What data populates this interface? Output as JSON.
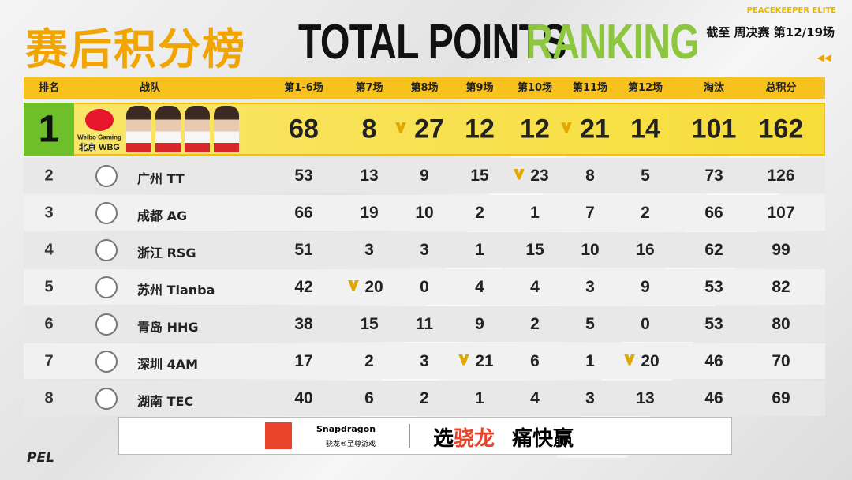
{
  "header": {
    "brand": "PEACEKEEPER ELITE",
    "title_cn": "赛后积分榜",
    "title_en_1": "TOTAL POINTS",
    "title_en_2": "RANKING",
    "progress": "截至 周决赛 第12/19场"
  },
  "table": {
    "columns": [
      "排名",
      "战队",
      "第1-6场",
      "第7场",
      "第8场",
      "第9场",
      "第10场",
      "第11场",
      "第12场",
      "淘汰",
      "总积分"
    ],
    "rows": [
      {
        "rank": 1,
        "logo_text": "Weibo Gaming",
        "team": "北京 WBG",
        "cells": [
          {
            "value": 68
          },
          {
            "value": 8
          },
          {
            "value": 27,
            "win": true
          },
          {
            "value": 12
          },
          {
            "value": 12
          },
          {
            "value": 21,
            "win": true
          },
          {
            "value": 14
          },
          {
            "value": 101
          },
          {
            "value": 162
          }
        ]
      },
      {
        "rank": 2,
        "team": "广州 TT",
        "cells": [
          {
            "value": 53
          },
          {
            "value": 13
          },
          {
            "value": 9
          },
          {
            "value": 15
          },
          {
            "value": 23,
            "win": true
          },
          {
            "value": 8
          },
          {
            "value": 5
          },
          {
            "value": 73
          },
          {
            "value": 126
          }
        ]
      },
      {
        "rank": 3,
        "team": "成都 AG",
        "cells": [
          {
            "value": 66
          },
          {
            "value": 19
          },
          {
            "value": 10
          },
          {
            "value": 2
          },
          {
            "value": 1
          },
          {
            "value": 7
          },
          {
            "value": 2
          },
          {
            "value": 66
          },
          {
            "value": 107
          }
        ]
      },
      {
        "rank": 4,
        "team": "浙江 RSG",
        "cells": [
          {
            "value": 51
          },
          {
            "value": 3
          },
          {
            "value": 3
          },
          {
            "value": 1
          },
          {
            "value": 15
          },
          {
            "value": 10
          },
          {
            "value": 16
          },
          {
            "value": 62
          },
          {
            "value": 99
          }
        ]
      },
      {
        "rank": 5,
        "team": "苏州 Tianba",
        "cells": [
          {
            "value": 42
          },
          {
            "value": 20,
            "win": true
          },
          {
            "value": 0
          },
          {
            "value": 4
          },
          {
            "value": 4
          },
          {
            "value": 3
          },
          {
            "value": 9
          },
          {
            "value": 53
          },
          {
            "value": 82
          }
        ]
      },
      {
        "rank": 6,
        "team": "青岛 HHG",
        "cells": [
          {
            "value": 38
          },
          {
            "value": 15
          },
          {
            "value": 11
          },
          {
            "value": 9
          },
          {
            "value": 2
          },
          {
            "value": 5
          },
          {
            "value": 0
          },
          {
            "value": 53
          },
          {
            "value": 80
          }
        ]
      },
      {
        "rank": 7,
        "team": "深圳 4AM",
        "cells": [
          {
            "value": 17
          },
          {
            "value": 2
          },
          {
            "value": 3
          },
          {
            "value": 21,
            "win": true
          },
          {
            "value": 6
          },
          {
            "value": 1
          },
          {
            "value": 20,
            "win": true
          },
          {
            "value": 46
          },
          {
            "value": 70
          }
        ]
      },
      {
        "rank": 8,
        "team": "湖南 TEC",
        "cells": [
          {
            "value": 40
          },
          {
            "value": 6
          },
          {
            "value": 2
          },
          {
            "value": 1
          },
          {
            "value": 4
          },
          {
            "value": 3
          },
          {
            "value": 13
          },
          {
            "value": 46
          },
          {
            "value": 69
          }
        ]
      }
    ]
  },
  "footer": {
    "sponsor": "Snapdragon",
    "sponsor_sub": "骁龙®至尊游戏",
    "slogan_1": "选",
    "slogan_2": "骁龙",
    "slogan_3": "痛快赢",
    "league": "PEL"
  }
}
